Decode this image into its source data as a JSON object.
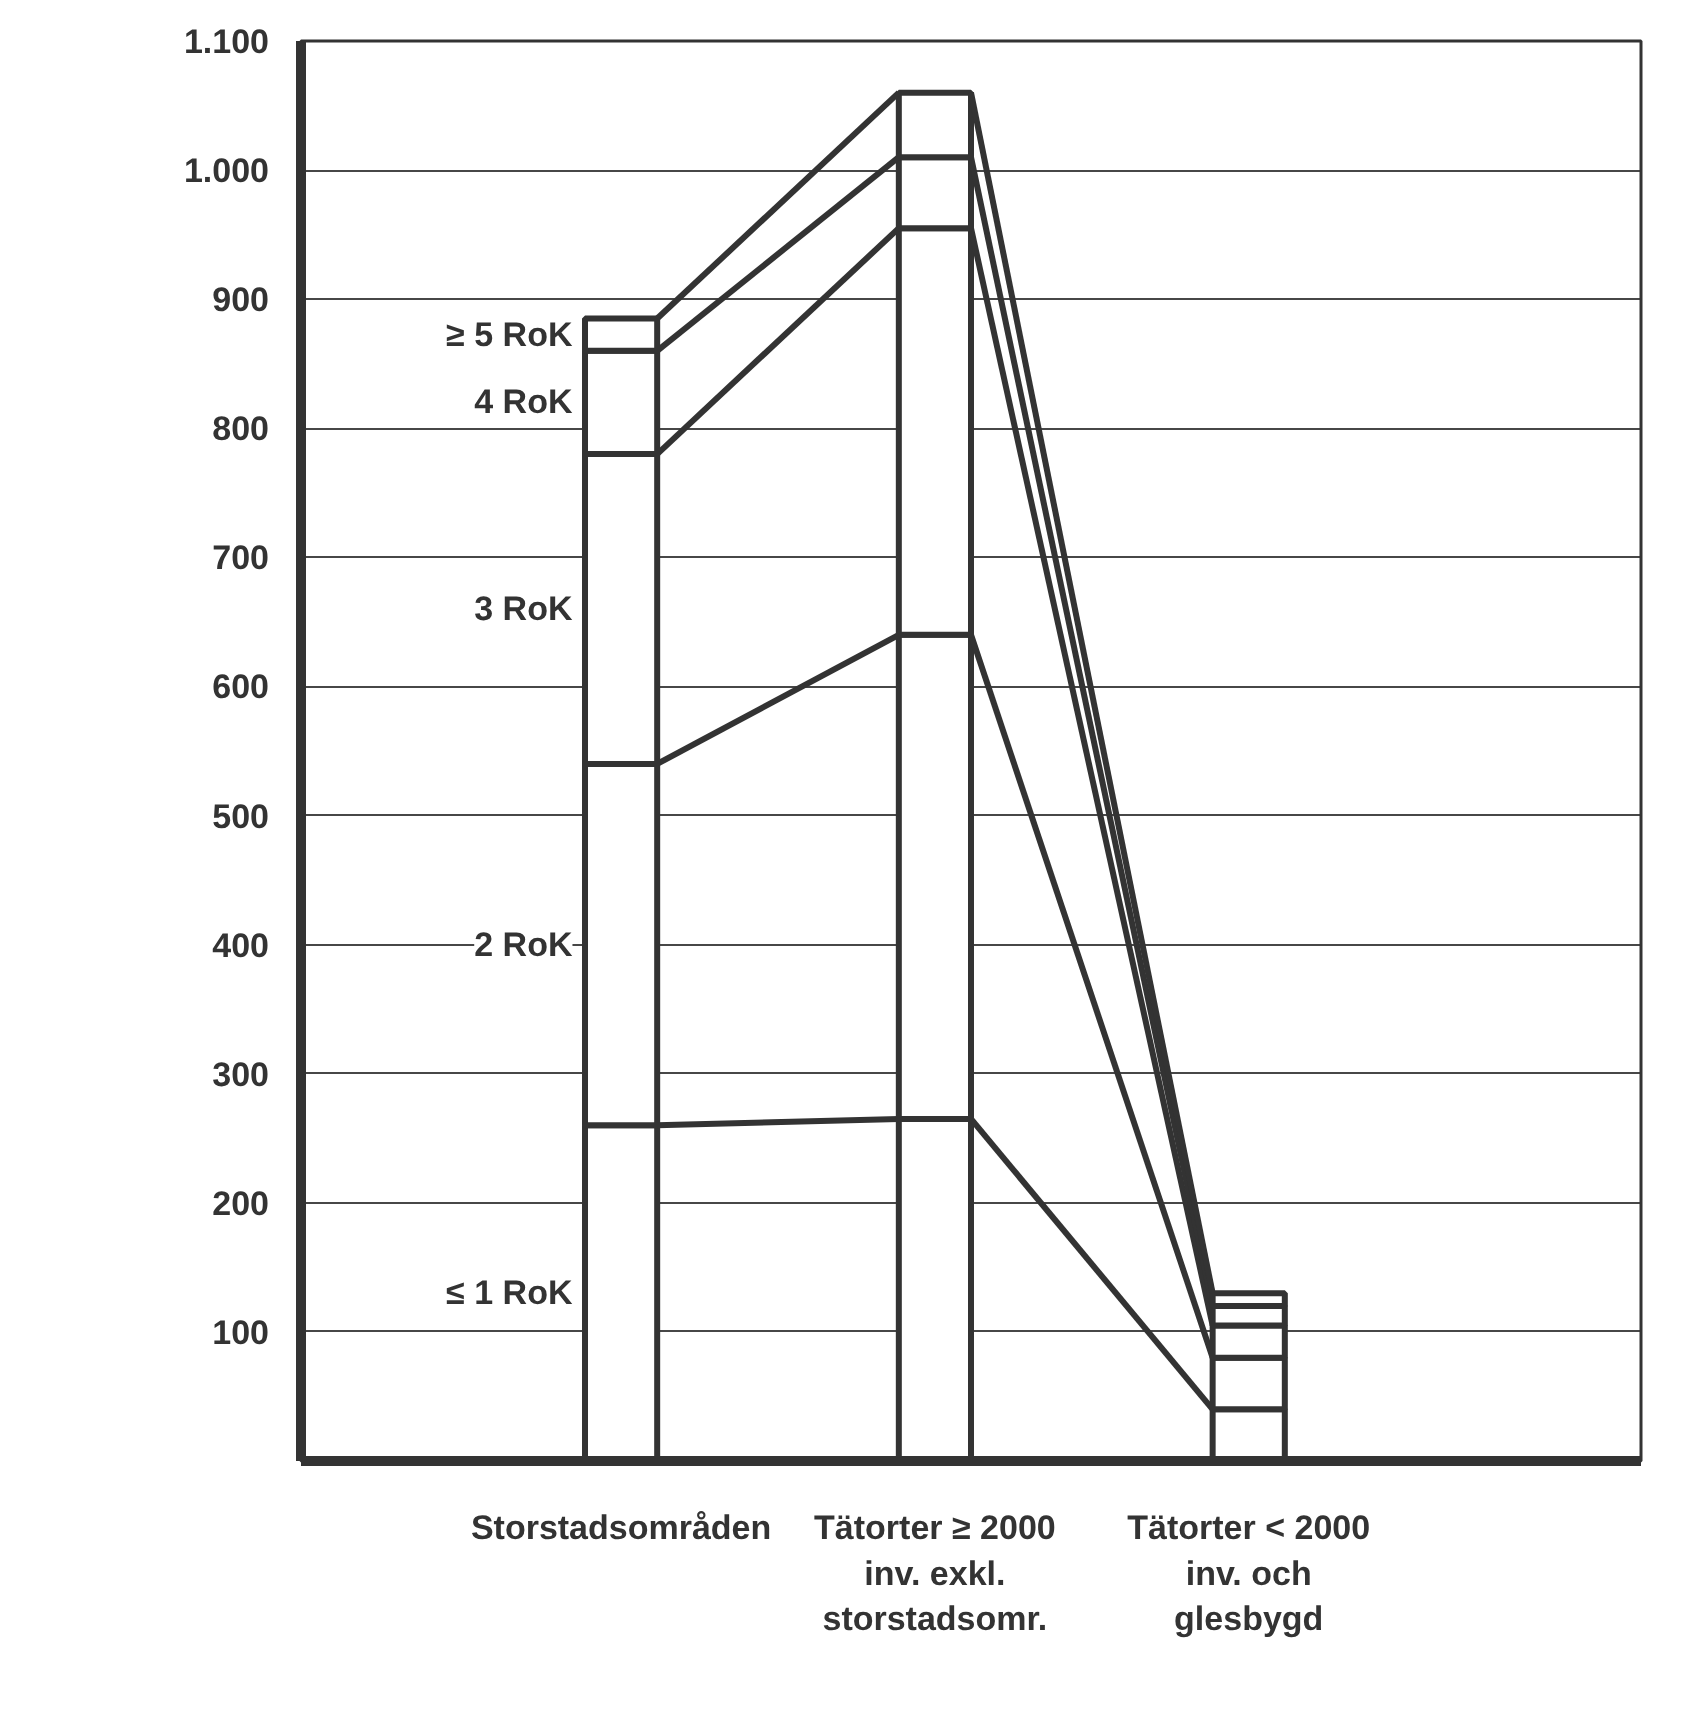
{
  "chart_data": {
    "type": "bar",
    "stacked": true,
    "categories": [
      "Storstadsområden",
      "Tätorter ≥ 2000 inv. exkl. storstadsomr.",
      "Tätorter < 2000 inv. och glesbygd"
    ],
    "series": [
      {
        "name": "≤ 1 RoK",
        "color": "#ffffff",
        "values": [
          260,
          265,
          40
        ]
      },
      {
        "name": "2 RoK",
        "color": "#ffffff",
        "values": [
          280,
          375,
          40
        ]
      },
      {
        "name": "3 RoK",
        "color": "#ffffff",
        "values": [
          240,
          315,
          25
        ]
      },
      {
        "name": "4 RoK",
        "color": "#ffffff",
        "values": [
          80,
          55,
          15
        ]
      },
      {
        "name": "≥ 5 RoK",
        "color": "#ffffff",
        "values": [
          25,
          50,
          10
        ]
      }
    ],
    "ylim": [
      0,
      1100
    ],
    "yticks": [
      {
        "value": 100,
        "label": "100"
      },
      {
        "value": 200,
        "label": "200"
      },
      {
        "value": 300,
        "label": "300"
      },
      {
        "value": 400,
        "label": "400"
      },
      {
        "value": 500,
        "label": "500"
      },
      {
        "value": 600,
        "label": "600"
      },
      {
        "value": 700,
        "label": "700"
      },
      {
        "value": 800,
        "label": "800"
      },
      {
        "value": 900,
        "label": "900"
      },
      {
        "value": 1000,
        "label": "1.000"
      },
      {
        "value": 1100,
        "label": "1.100"
      }
    ],
    "grid": "y"
  }
}
